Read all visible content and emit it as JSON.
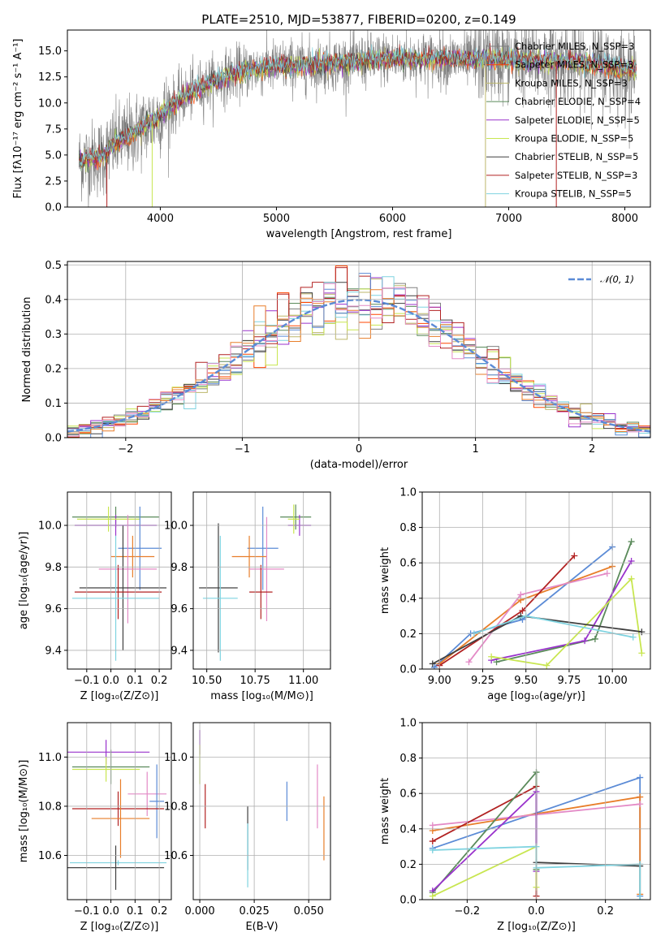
{
  "colors": {
    "cmiles": "#808080",
    "smiles": "#ff4500",
    "kmiles": "#bdb76b",
    "celodie": "#5a8a5a",
    "selodie": "#9932cc",
    "kelodie": "#c8e650",
    "cstelib": "#404040",
    "sstelib": "#b22222",
    "kstelib": "#7fd3e0",
    "blue": "#5b8bd6",
    "orange": "#e87e2a",
    "pink": "#e38ac6",
    "teal": "#5fb8b8",
    "gaussian": "#5b8bd6"
  },
  "chart_data": [
    {
      "id": "spectrum",
      "type": "line",
      "title": "PLATE=2510, MJD=53877, FIBERID=0200, z=0.149",
      "xlabel": "wavelength [Angstrom, rest frame]",
      "ylabel": "Flux [fλ10⁻¹⁷ erg cm⁻² s⁻¹ A⁻¹]",
      "xlim": [
        3200,
        8220
      ],
      "ylim": [
        0,
        17
      ],
      "xticks": [
        "4000",
        "5000",
        "6000",
        "7000",
        "8000"
      ],
      "yticks": [
        "0.0",
        "2.5",
        "5.0",
        "7.5",
        "10.0",
        "12.5",
        "15.0"
      ],
      "continuum": {
        "x": [
          3300,
          3500,
          3600,
          3800,
          4000,
          4200,
          4400,
          4600,
          4800,
          5000,
          5200,
          5400,
          5600,
          5800,
          6000,
          6200,
          6400,
          6600,
          6800,
          7000,
          7200,
          7400,
          7600,
          7800,
          8000,
          8100
        ],
        "y": [
          4.4,
          4.8,
          6.0,
          7.3,
          8.8,
          10.6,
          11.8,
          12.7,
          13.3,
          13.5,
          13.6,
          13.7,
          13.9,
          14.1,
          14.3,
          14.2,
          14.2,
          14.2,
          14.1,
          14.1,
          14.0,
          14.0,
          13.9,
          13.6,
          13.2,
          13.0
        ]
      },
      "legend": [
        {
          "label": "Chabrier MILES, N_SSP=3",
          "color": "#808080"
        },
        {
          "label": "Salpeter MILES, N_SSP=3",
          "color": "#ff4500"
        },
        {
          "label": "Kroupa MILES, N_SSP=3",
          "color": "#bdb76b"
        },
        {
          "label": "Chabrier ELODIE, N_SSP=4",
          "color": "#5a8a5a"
        },
        {
          "label": "Salpeter ELODIE, N_SSP=5",
          "color": "#9932cc"
        },
        {
          "label": "Kroupa ELODIE, N_SSP=5",
          "color": "#c8e650"
        },
        {
          "label": "Chabrier STELIB, N_SSP=5",
          "color": "#404040"
        },
        {
          "label": "Salpeter STELIB, N_SSP=3",
          "color": "#b22222"
        },
        {
          "label": "Kroupa STELIB, N_SSP=5",
          "color": "#7fd3e0"
        }
      ]
    },
    {
      "id": "residuals",
      "type": "area",
      "xlabel": "(data-model)/error",
      "ylabel": "Normed distribution",
      "xlim": [
        -2.5,
        2.5
      ],
      "ylim": [
        0,
        0.51
      ],
      "xticks": [
        {
          "v": -2,
          "t": "−2"
        },
        {
          "v": -1,
          "t": "−1"
        },
        {
          "v": 0,
          "t": "0"
        },
        {
          "v": 1,
          "t": "1"
        },
        {
          "v": 2,
          "t": "2"
        }
      ],
      "yticks": [
        "0.0",
        "0.1",
        "0.2",
        "0.3",
        "0.4",
        "0.5"
      ],
      "legend_label": "𝒩(0, 1)",
      "bin_width": 0.1
    },
    {
      "id": "age_vs_Z",
      "type": "scatter",
      "xlabel": "Z [log₁₀(Z/Z⊙)]",
      "ylabel": "age  [log₁₀(age/yr)]",
      "xlim": [
        -0.18,
        0.25
      ],
      "ylim": [
        9.31,
        10.16
      ],
      "xticks": [
        "-0.1",
        "0.0",
        "0.1",
        "0.2"
      ],
      "xtick_labels": [
        "−0.1",
        "0.0",
        "0.1",
        "0.2"
      ],
      "yticks": [
        "9.4",
        "9.6",
        "9.8",
        "10.0"
      ],
      "points": [
        {
          "x": 0.02,
          "y": 10.04,
          "xerr": 0.18,
          "yerr": 0.05,
          "c": "#5a8a5a"
        },
        {
          "x": 0.02,
          "y": 10.0,
          "xerr": 0.17,
          "yerr": 0.05,
          "c": "#9932cc"
        },
        {
          "x": -0.01,
          "y": 10.03,
          "xerr": 0.13,
          "yerr": 0.06,
          "c": "#c8e650"
        },
        {
          "x": 0.12,
          "y": 9.89,
          "xerr": 0.09,
          "yerr": 0.2,
          "c": "#5b8bd6"
        },
        {
          "x": 0.09,
          "y": 9.85,
          "xerr": 0.09,
          "yerr": 0.1,
          "c": "#e87e2a"
        },
        {
          "x": 0.07,
          "y": 9.79,
          "xerr": 0.12,
          "yerr": 0.26,
          "c": "#e38ac6"
        },
        {
          "x": 0.05,
          "y": 9.7,
          "xerr": 0.18,
          "yerr": 0.3,
          "c": "#404040"
        },
        {
          "x": 0.03,
          "y": 9.68,
          "xerr": 0.18,
          "yerr": 0.13,
          "c": "#b22222"
        },
        {
          "x": 0.02,
          "y": 9.65,
          "xerr": 0.18,
          "yerr": 0.3,
          "c": "#7fd3e0"
        }
      ]
    },
    {
      "id": "age_vs_mass",
      "type": "scatter",
      "xlabel": "mass [log₁₀(M/M⊙)]",
      "xlim": [
        10.43,
        11.14
      ],
      "ylim": [
        9.31,
        10.16
      ],
      "xticks": [
        "10.50",
        "10.75",
        "11.00"
      ],
      "yticks": [
        "9.4",
        "9.6",
        "9.8",
        "10.0"
      ],
      "points": [
        {
          "x": 10.96,
          "y": 10.04,
          "xerr": 0.08,
          "yerr": 0.06,
          "c": "#5a8a5a"
        },
        {
          "x": 10.98,
          "y": 10.0,
          "xerr": 0.06,
          "yerr": 0.05,
          "c": "#9932cc"
        },
        {
          "x": 10.95,
          "y": 10.03,
          "xerr": 0.03,
          "yerr": 0.07,
          "c": "#c8e650"
        },
        {
          "x": 10.79,
          "y": 9.89,
          "xerr": 0.08,
          "yerr": 0.2,
          "c": "#5b8bd6"
        },
        {
          "x": 10.72,
          "y": 9.85,
          "xerr": 0.09,
          "yerr": 0.1,
          "c": "#e87e2a"
        },
        {
          "x": 10.81,
          "y": 9.79,
          "xerr": 0.09,
          "yerr": 0.25,
          "c": "#e38ac6"
        },
        {
          "x": 10.56,
          "y": 9.7,
          "xerr": 0.1,
          "yerr": 0.31,
          "c": "#404040"
        },
        {
          "x": 10.78,
          "y": 9.68,
          "xerr": 0.06,
          "yerr": 0.13,
          "c": "#b22222"
        },
        {
          "x": 10.57,
          "y": 9.65,
          "xerr": 0.09,
          "yerr": 0.3,
          "c": "#7fd3e0"
        }
      ]
    },
    {
      "id": "weight_vs_age",
      "type": "line",
      "xlabel": "age  [log₁₀(age/yr)]",
      "ylabel": "mass weight",
      "xlim": [
        8.9,
        10.22
      ],
      "ylim": [
        0,
        1.0
      ],
      "xticks": [
        "9.00",
        "9.25",
        "9.50",
        "9.75",
        "10.00"
      ],
      "yticks": [
        "0.0",
        "0.2",
        "0.4",
        "0.6",
        "0.8",
        "1.0"
      ],
      "series": [
        {
          "c": "#5b8bd6",
          "x": [
            8.97,
            9.18,
            9.48,
            10.0
          ],
          "y": [
            0.01,
            0.2,
            0.28,
            0.69
          ]
        },
        {
          "c": "#e87e2a",
          "x": [
            9.0,
            9.47,
            10.0
          ],
          "y": [
            0.03,
            0.39,
            0.58
          ]
        },
        {
          "c": "#e38ac6",
          "x": [
            9.17,
            9.47,
            9.97
          ],
          "y": [
            0.04,
            0.42,
            0.54
          ]
        },
        {
          "c": "#b22222",
          "x": [
            9.0,
            9.48,
            9.78
          ],
          "y": [
            0.02,
            0.33,
            0.64
          ]
        },
        {
          "c": "#5a8a5a",
          "x": [
            9.33,
            9.9,
            10.11
          ],
          "y": [
            0.04,
            0.17,
            0.72
          ]
        },
        {
          "c": "#9932cc",
          "x": [
            9.3,
            9.84,
            10.11
          ],
          "y": [
            0.05,
            0.16,
            0.61
          ]
        },
        {
          "c": "#c8e650",
          "x": [
            9.3,
            9.62,
            10.11,
            10.17
          ],
          "y": [
            0.07,
            0.02,
            0.51,
            0.09
          ]
        },
        {
          "c": "#404040",
          "x": [
            8.96,
            9.47,
            10.17
          ],
          "y": [
            0.03,
            0.3,
            0.21
          ]
        },
        {
          "c": "#7fd3e0",
          "x": [
            9.2,
            9.5,
            10.12
          ],
          "y": [
            0.2,
            0.3,
            0.18
          ]
        }
      ]
    },
    {
      "id": "mass_vs_Z",
      "type": "scatter",
      "xlabel": "Z [log₁₀(Z/Z⊙)]",
      "ylabel": "mass [log₁₀(M/M⊙)]",
      "xlim": [
        -0.18,
        0.25
      ],
      "ylim": [
        10.42,
        11.14
      ],
      "xticks": [
        "-0.1",
        "0.0",
        "0.1",
        "0.2"
      ],
      "xtick_labels": [
        "−0.1",
        "0.0",
        "0.1",
        "0.2"
      ],
      "yticks": [
        "10.6",
        "10.8",
        "11.0"
      ],
      "points": [
        {
          "x": -0.02,
          "y": 11.02,
          "xerr": 0.18,
          "yerr": 0.05,
          "c": "#9932cc"
        },
        {
          "x": 0.0,
          "y": 10.96,
          "xerr": 0.16,
          "yerr": 0.07,
          "c": "#5a8a5a"
        },
        {
          "x": -0.02,
          "y": 10.95,
          "xerr": 0.14,
          "yerr": 0.05,
          "c": "#c8e650"
        },
        {
          "x": 0.15,
          "y": 10.85,
          "xerr": 0.08,
          "yerr": 0.09,
          "c": "#e38ac6"
        },
        {
          "x": 0.19,
          "y": 10.82,
          "xerr": 0.03,
          "yerr": 0.15,
          "c": "#5b8bd6"
        },
        {
          "x": 0.03,
          "y": 10.79,
          "xerr": 0.19,
          "yerr": 0.07,
          "c": "#b22222"
        },
        {
          "x": 0.04,
          "y": 10.75,
          "xerr": 0.12,
          "yerr": 0.16,
          "c": "#e87e2a"
        },
        {
          "x": 0.03,
          "y": 10.57,
          "xerr": 0.2,
          "yerr": 0.01,
          "c": "#7fd3e0"
        },
        {
          "x": 0.02,
          "y": 10.55,
          "xerr": 0.2,
          "yerr": 0.09,
          "c": "#404040"
        }
      ]
    },
    {
      "id": "mass_vs_ebv",
      "type": "scatter",
      "xlabel": "E(B-V)",
      "xlim": [
        -0.003,
        0.06
      ],
      "ylim": [
        10.42,
        11.14
      ],
      "xticks": [
        "0.000",
        "0.025",
        "0.050"
      ],
      "yticks": [
        "10.6",
        "10.8",
        "11.0"
      ],
      "points": [
        {
          "x": 0.0,
          "y": 11.06,
          "yerr": 0.05,
          "c": "#9932cc"
        },
        {
          "x": 0.0,
          "y": 10.97,
          "yerr": 0.08,
          "c": "#c8e650"
        },
        {
          "x": 0.0025,
          "y": 10.8,
          "yerr": 0.09,
          "c": "#b22222"
        },
        {
          "x": 0.022,
          "y": 10.67,
          "yerr": 0.13,
          "c": "#404040"
        },
        {
          "x": 0.022,
          "y": 10.6,
          "yerr": 0.13,
          "c": "#7fd3e0"
        },
        {
          "x": 0.04,
          "y": 10.82,
          "yerr": 0.08,
          "c": "#5b8bd6"
        },
        {
          "x": 0.054,
          "y": 10.84,
          "yerr": 0.13,
          "c": "#e38ac6"
        },
        {
          "x": 0.057,
          "y": 10.71,
          "yerr": 0.13,
          "c": "#e87e2a"
        }
      ]
    },
    {
      "id": "weight_vs_Z",
      "type": "line",
      "xlabel": "Z [log₁₀(Z/Z⊙)]",
      "ylabel": "mass weight",
      "xlim": [
        -0.33,
        0.33
      ],
      "ylim": [
        0,
        1.0
      ],
      "xticks": [
        {
          "v": -0.2,
          "t": "−0.2"
        },
        {
          "v": 0,
          "t": "0.0"
        },
        {
          "v": 0.2,
          "t": "0.2"
        }
      ],
      "yticks": [
        "0.0",
        "0.2",
        "0.4",
        "0.6",
        "0.8",
        "1.0"
      ],
      "series": [
        {
          "c": "#5b8bd6",
          "x": [
            -0.3,
            0.3,
            0.3
          ],
          "y": [
            0.29,
            0.69,
            0.02
          ]
        },
        {
          "c": "#e87e2a",
          "x": [
            -0.3,
            0.3,
            0.3
          ],
          "y": [
            0.39,
            0.58,
            0.03
          ]
        },
        {
          "c": "#e38ac6",
          "x": [
            -0.3,
            0.3
          ],
          "y": [
            0.42,
            0.54
          ]
        },
        {
          "c": "#b22222",
          "x": [
            -0.3,
            0.0,
            0.0
          ],
          "y": [
            0.33,
            0.64,
            0.02
          ]
        },
        {
          "c": "#5a8a5a",
          "x": [
            -0.3,
            0.0,
            0.0
          ],
          "y": [
            0.04,
            0.72,
            0.17
          ]
        },
        {
          "c": "#9932cc",
          "x": [
            -0.3,
            0.0,
            0.0
          ],
          "y": [
            0.05,
            0.61,
            0.16
          ]
        },
        {
          "c": "#c8e650",
          "x": [
            -0.3,
            0.0,
            0.0
          ],
          "y": [
            0.02,
            0.3,
            0.07
          ]
        },
        {
          "c": "#404040",
          "x": [
            0.0,
            0.3
          ],
          "y": [
            0.21,
            0.19
          ]
        },
        {
          "c": "#7fd3e0",
          "x": [
            -0.3,
            0.0,
            0.0,
            0.3,
            0.3
          ],
          "y": [
            0.28,
            0.3,
            0.18,
            0.2,
            0.0
          ]
        }
      ]
    }
  ]
}
